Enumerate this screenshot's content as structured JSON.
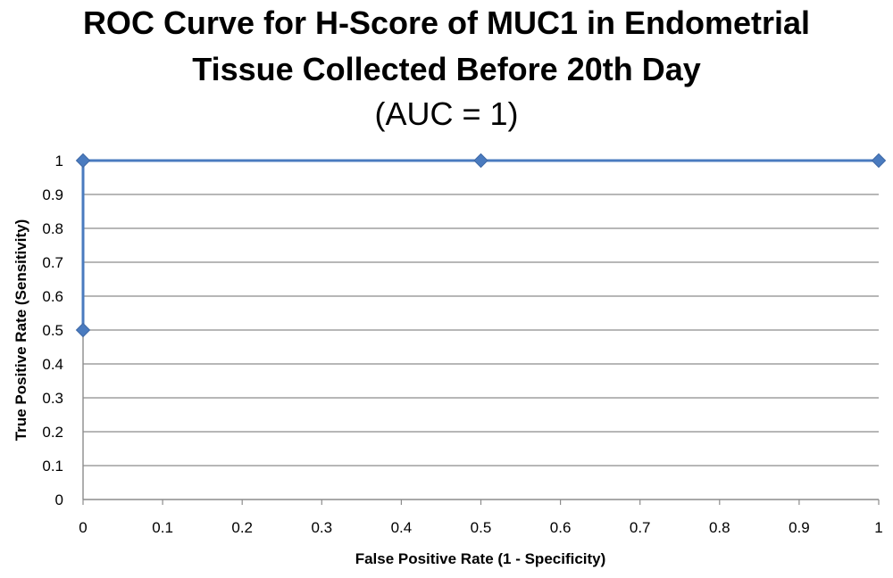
{
  "chart_data": {
    "type": "line",
    "title": "ROC Curve for H-Score of MUC1 in Endometrial",
    "title_line2": "Tissue Collected Before 20th Day",
    "subtitle": "(AUC = 1)",
    "xlabel": "False Positive Rate (1 - Specificity)",
    "ylabel": "True Positive Rate (Sensitivity)",
    "xlim": [
      0,
      1
    ],
    "ylim": [
      0,
      1
    ],
    "x_ticks": [
      "0",
      "0.1",
      "0.2",
      "0.3",
      "0.4",
      "0.5",
      "0.6",
      "0.7",
      "0.8",
      "0.9",
      "1"
    ],
    "y_ticks": [
      "0",
      "0.1",
      "0.2",
      "0.3",
      "0.4",
      "0.5",
      "0.6",
      "0.7",
      "0.8",
      "0.9",
      "1"
    ],
    "grid": "horizontal",
    "legend": "none",
    "series": [
      {
        "x": [
          0,
          0,
          0.5,
          1
        ],
        "y": [
          0.5,
          1,
          1,
          1
        ],
        "color": "#4a7bbf",
        "marker": "diamond"
      }
    ]
  }
}
